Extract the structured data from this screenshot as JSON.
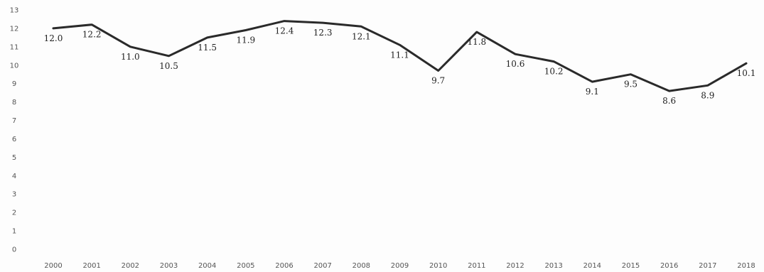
{
  "chart_data": {
    "type": "line",
    "x": [
      "2000",
      "2001",
      "2002",
      "2003",
      "2004",
      "2005",
      "2006",
      "2007",
      "2008",
      "2009",
      "2010",
      "2011",
      "2012",
      "2013",
      "2014",
      "2015",
      "2016",
      "2017",
      "2018"
    ],
    "series": [
      {
        "values": [
          12.0,
          12.2,
          11.0,
          10.5,
          11.5,
          11.9,
          12.4,
          12.3,
          12.1,
          11.1,
          9.7,
          11.8,
          10.6,
          10.2,
          9.1,
          9.5,
          8.6,
          8.9,
          10.1
        ],
        "labels": [
          "12.0",
          "12.2",
          "11.0",
          "10.5",
          "11.5",
          "11.9",
          "12.4",
          "12.3",
          "12.1",
          "11.1",
          "9.7",
          "11.8",
          "10.6",
          "10.2",
          "9.1",
          "9.5",
          "8.6",
          "8.9",
          "10.1"
        ],
        "color": "#2a2a2a"
      }
    ],
    "yticks": [
      "0",
      "1",
      "2",
      "3",
      "4",
      "5",
      "6",
      "7",
      "8",
      "9",
      "10",
      "11",
      "12",
      "13"
    ],
    "ylim": [
      0,
      13
    ],
    "title": "",
    "xlabel": "",
    "ylabel": "",
    "grid": false,
    "legend": "none"
  }
}
